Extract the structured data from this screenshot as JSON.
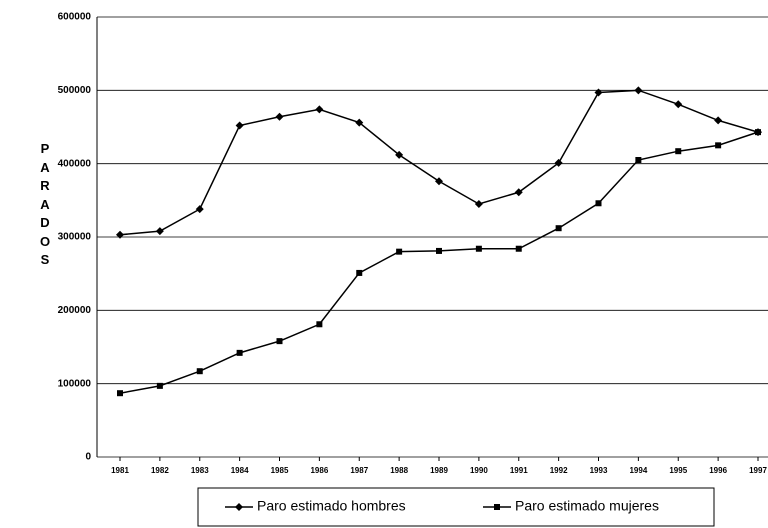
{
  "chart_data": {
    "type": "line",
    "y_label": "PARADOS",
    "categories": [
      "1981",
      "1982",
      "1983",
      "1984",
      "1985",
      "1986",
      "1987",
      "1988",
      "1989",
      "1990",
      "1991",
      "1992",
      "1993",
      "1994",
      "1995",
      "1996",
      "1997"
    ],
    "series": [
      {
        "name": "Paro estimado hombres",
        "color": "#000000",
        "marker": "diamond",
        "values": [
          303000,
          308000,
          338000,
          452000,
          464000,
          474000,
          456000,
          412000,
          376000,
          345000,
          361000,
          401000,
          497000,
          500000,
          481000,
          459000,
          443000
        ]
      },
      {
        "name": "Paro estimado mujeres",
        "color": "#000000",
        "marker": "square",
        "values": [
          87000,
          97000,
          117000,
          142000,
          158000,
          181000,
          251000,
          280000,
          281000,
          284000,
          284000,
          312000,
          346000,
          405000,
          417000,
          425000,
          443000
        ]
      }
    ],
    "ylim": [
      0,
      600000
    ],
    "yticks": [
      0,
      100000,
      200000,
      300000,
      400000,
      500000,
      600000
    ],
    "grid": true,
    "legend": "bottom"
  }
}
